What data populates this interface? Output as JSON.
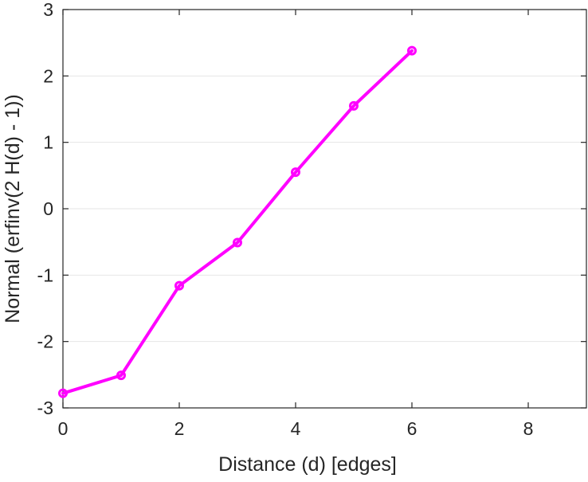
{
  "chart_data": {
    "type": "line",
    "title": "",
    "xlabel": "Distance (d) [edges]",
    "ylabel": "Normal (erfinv(2 H(d) - 1))",
    "xlim": [
      0,
      9
    ],
    "ylim": [
      -3,
      3
    ],
    "xticks": [
      0,
      2,
      4,
      6,
      8
    ],
    "yticks": [
      -3,
      -2,
      -1,
      0,
      1,
      2,
      3
    ],
    "grid": "horizontal",
    "legend": "none",
    "series": [
      {
        "color": "#ff00ff",
        "marker": "circle",
        "x": [
          0,
          1,
          2,
          3,
          4,
          5,
          6
        ],
        "y": [
          -2.78,
          -2.51,
          -1.16,
          -0.51,
          0.55,
          1.55,
          2.38
        ]
      }
    ]
  }
}
